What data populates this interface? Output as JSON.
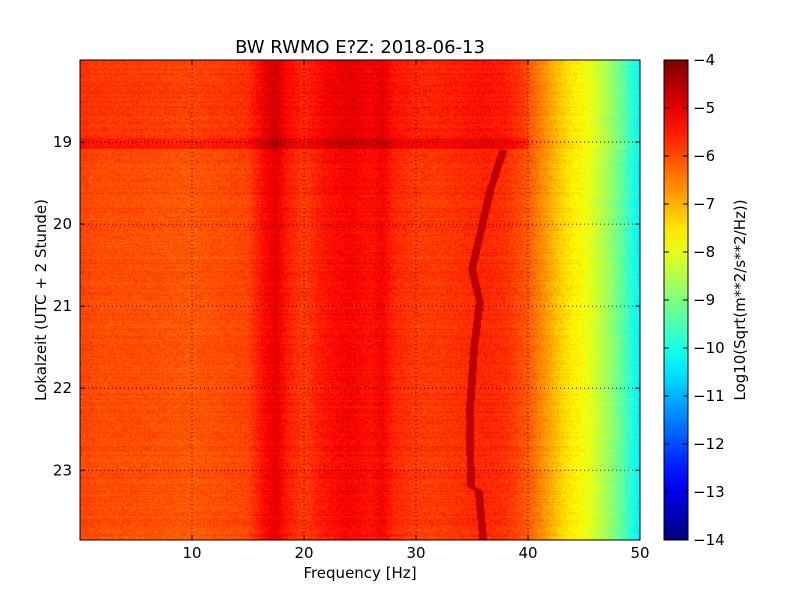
{
  "chart_data": {
    "type": "heatmap",
    "title": "BW RWMO E?Z: 2018-06-13",
    "xlabel": "Frequency [Hz]",
    "ylabel": "Lokalzeit (UTC + 2 Stunde)",
    "xlim": [
      0,
      50
    ],
    "ylim": [
      18.0,
      23.85
    ],
    "y_inverted": true,
    "grid": true,
    "x_ticks": [
      10,
      20,
      30,
      40,
      50
    ],
    "x_tick_labels": [
      "10",
      "20",
      "30",
      "40",
      "50"
    ],
    "y_ticks": [
      19,
      20,
      21,
      22,
      23
    ],
    "y_tick_labels": [
      "19",
      "20",
      "21",
      "22",
      "23"
    ],
    "colorbar": {
      "label": "Log10(Sqrt(m**2/s**2/Hz))",
      "min": -14,
      "max": -4,
      "colormap": "jet",
      "ticks": [
        -4,
        -5,
        -6,
        -7,
        -8,
        -9,
        -10,
        -11,
        -12,
        -13,
        -14
      ],
      "tick_labels": [
        "−4",
        "−5",
        "−6",
        "−7",
        "−8",
        "−9",
        "−10",
        "−11",
        "−12",
        "−13",
        "−14"
      ]
    },
    "spectral_profile": {
      "frequency": [
        0,
        2,
        5,
        10,
        15,
        16.5,
        17.5,
        18.5,
        20,
        22,
        24,
        26,
        27,
        28,
        30,
        32,
        34,
        36,
        38,
        39,
        40,
        41,
        42,
        43,
        44,
        45,
        46,
        47,
        48,
        49,
        50
      ],
      "log_amplitude": [
        -5.9,
        -6.0,
        -6.0,
        -6.1,
        -5.9,
        -5.3,
        -5.0,
        -5.5,
        -5.8,
        -5.4,
        -5.2,
        -5.4,
        -5.2,
        -5.6,
        -5.8,
        -5.8,
        -5.7,
        -5.6,
        -5.7,
        -5.9,
        -6.1,
        -6.5,
        -6.9,
        -7.3,
        -7.6,
        -7.8,
        -8.2,
        -8.6,
        -9.1,
        -9.7,
        -10.4
      ]
    },
    "time_bands": [
      {
        "start": 18.0,
        "end": 18.95,
        "offset": 0.2
      },
      {
        "start": 18.95,
        "end": 19.08,
        "offset": 0.55
      },
      {
        "start": 19.08,
        "end": 23.85,
        "offset": 0.0
      }
    ],
    "tonal_line": {
      "description_points": [
        {
          "time": 19.1,
          "frequency": 37.8
        },
        {
          "time": 19.6,
          "frequency": 36.6
        },
        {
          "time": 20.2,
          "frequency": 35.6
        },
        {
          "time": 20.55,
          "frequency": 35.0
        },
        {
          "time": 20.95,
          "frequency": 35.7
        },
        {
          "time": 21.5,
          "frequency": 35.2
        },
        {
          "time": 22.3,
          "frequency": 34.8
        },
        {
          "time": 23.2,
          "frequency": 34.9
        },
        {
          "time": 23.25,
          "frequency": 35.6
        },
        {
          "time": 23.85,
          "frequency": 36.0
        }
      ],
      "log_amplitude": -4.6
    }
  }
}
